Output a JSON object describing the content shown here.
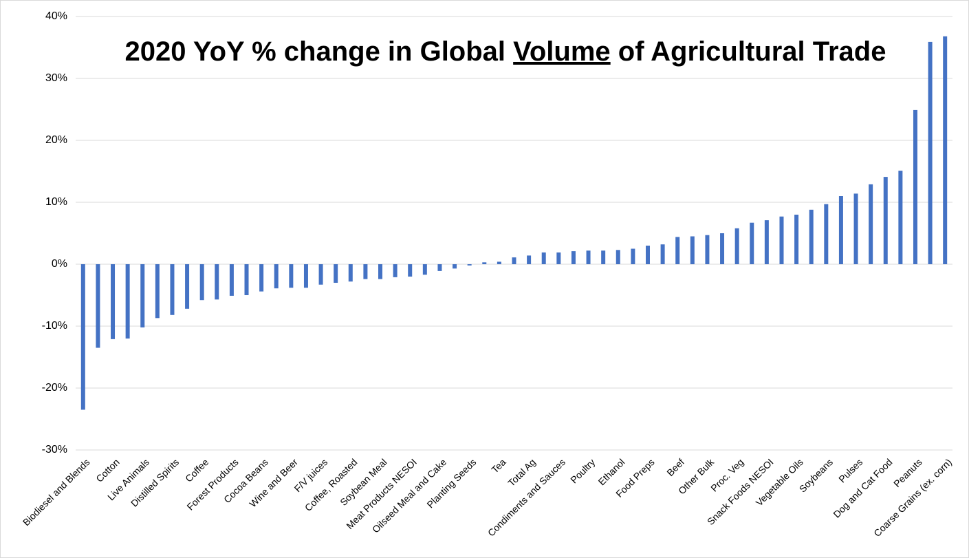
{
  "chart_data": {
    "type": "bar",
    "title": [
      "2020 YoY % change in Global ",
      "Volume",
      " of Agricultural Trade"
    ],
    "categories": [
      "Biodiesel and Blends",
      null,
      "Cotton",
      null,
      "Live Animals",
      null,
      "Distilled Spirits",
      null,
      "Coffee",
      null,
      "Forest Products",
      null,
      "Cocoa Beans",
      null,
      "Wine and Beer",
      null,
      "F/V juices",
      null,
      "Coffee, Roasted",
      null,
      "Soybean Meal",
      null,
      "Meat Products NESOI",
      null,
      "Oilseed Meal and Cake",
      null,
      "Planting Seeds",
      null,
      "Tea",
      null,
      "Total Ag",
      null,
      "Condiments and Sauces",
      null,
      "Poultry",
      null,
      "Ethanol",
      null,
      "Food Preps",
      null,
      "Beef",
      null,
      "Other Bulk",
      null,
      "Proc. Veg",
      null,
      "Snack Foods NESOI",
      null,
      "Vegetable Oils",
      null,
      "Soybeans",
      null,
      "Pulses",
      null,
      "Dog and Cat Food",
      null,
      "Peanuts",
      null,
      "Coarse Grains (ex. corn)"
    ],
    "values": [
      -23.5,
      -13.5,
      -12.1,
      -12.0,
      -10.2,
      -8.7,
      -8.2,
      -7.2,
      -5.8,
      -5.7,
      -5.1,
      -5.0,
      -4.4,
      -3.9,
      -3.8,
      -3.8,
      -3.3,
      -3.0,
      -2.8,
      -2.4,
      -2.4,
      -2.1,
      -2.0,
      -1.7,
      -1.1,
      -0.7,
      -0.2,
      0.3,
      0.4,
      1.1,
      1.4,
      1.9,
      1.9,
      2.1,
      2.2,
      2.2,
      2.3,
      2.5,
      3.0,
      3.2,
      4.4,
      4.5,
      4.7,
      5.0,
      5.8,
      6.7,
      7.1,
      7.7,
      8.0,
      8.8,
      9.7,
      11.0,
      11.4,
      12.9,
      14.1,
      15.1,
      24.9,
      35.9,
      36.8
    ],
    "color": "#4472c4",
    "ylim": [
      -30,
      40
    ],
    "yticks": [
      {
        "value": -30,
        "label": "-30%"
      },
      {
        "value": -20,
        "label": "-20%"
      },
      {
        "value": -10,
        "label": "-10%"
      },
      {
        "value": 0,
        "label": "0%"
      },
      {
        "value": 10,
        "label": "10%"
      },
      {
        "value": 20,
        "label": "20%"
      },
      {
        "value": 30,
        "label": "30%"
      },
      {
        "value": 40,
        "label": "40%"
      }
    ],
    "grid": true
  }
}
